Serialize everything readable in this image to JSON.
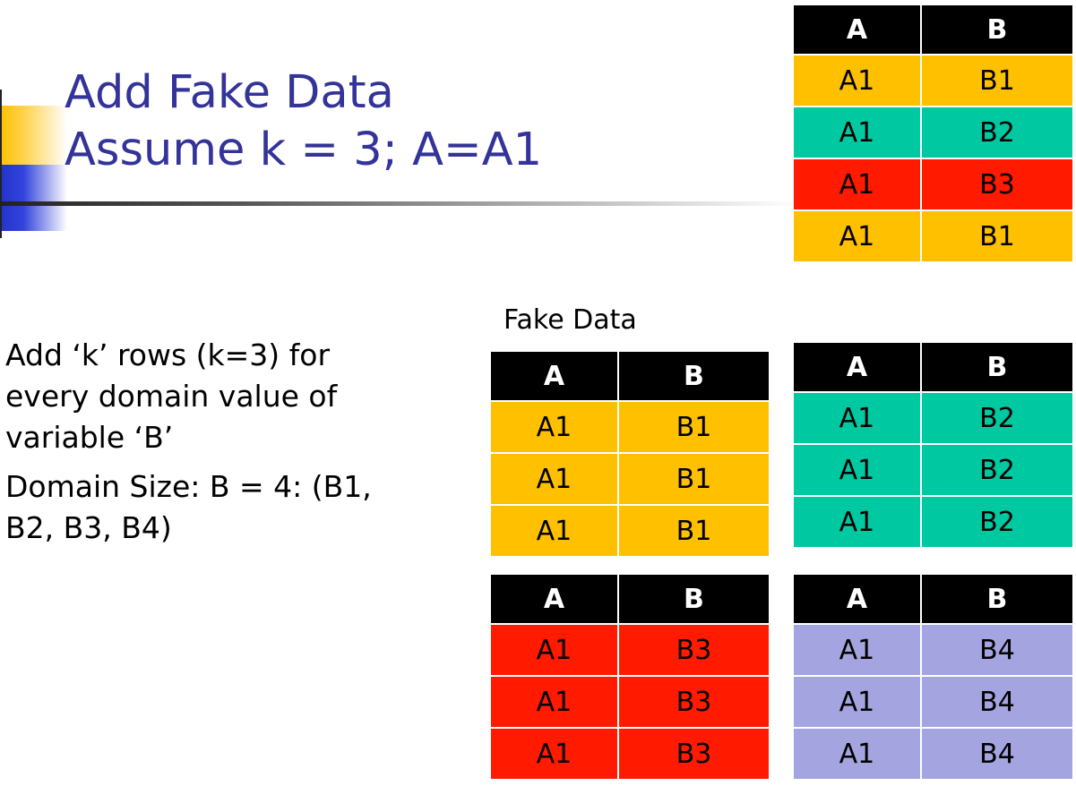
{
  "title": {
    "line1": "Add Fake Data",
    "line2": "Assume k = 3; A=A1"
  },
  "bullets": [
    "Add ‘k’ rows (k=3) for every domain value of variable ‘B’",
    "Domain Size: B = 4: (B1, B2, B3, B4)"
  ],
  "fake_data_label": "Fake Data",
  "colors": {
    "b1": "#ffc000",
    "b2": "#00c8a0",
    "b3": "#ff1a00",
    "b4": "#a4a4e0",
    "header": "#000000",
    "title": "#333399"
  },
  "original_table": {
    "headers": [
      "A",
      "B"
    ],
    "rows": [
      {
        "a": "A1",
        "b": "B1",
        "color": "#ffc000"
      },
      {
        "a": "A1",
        "b": "B2",
        "color": "#00c8a0"
      },
      {
        "a": "A1",
        "b": "B3",
        "color": "#ff1a00"
      },
      {
        "a": "A1",
        "b": "B1",
        "color": "#ffc000"
      }
    ]
  },
  "fake_tables": [
    {
      "headers": [
        "A",
        "B"
      ],
      "color": "#ffc000",
      "rows": [
        [
          "A1",
          "B1"
        ],
        [
          "A1",
          "B1"
        ],
        [
          "A1",
          "B1"
        ]
      ]
    },
    {
      "headers": [
        "A",
        "B"
      ],
      "color": "#00c8a0",
      "rows": [
        [
          "A1",
          "B2"
        ],
        [
          "A1",
          "B2"
        ],
        [
          "A1",
          "B2"
        ]
      ]
    },
    {
      "headers": [
        "A",
        "B"
      ],
      "color": "#ff1a00",
      "rows": [
        [
          "A1",
          "B3"
        ],
        [
          "A1",
          "B3"
        ],
        [
          "A1",
          "B3"
        ]
      ]
    },
    {
      "headers": [
        "A",
        "B"
      ],
      "color": "#a4a4e0",
      "rows": [
        [
          "A1",
          "B4"
        ],
        [
          "A1",
          "B4"
        ],
        [
          "A1",
          "B4"
        ]
      ]
    }
  ]
}
